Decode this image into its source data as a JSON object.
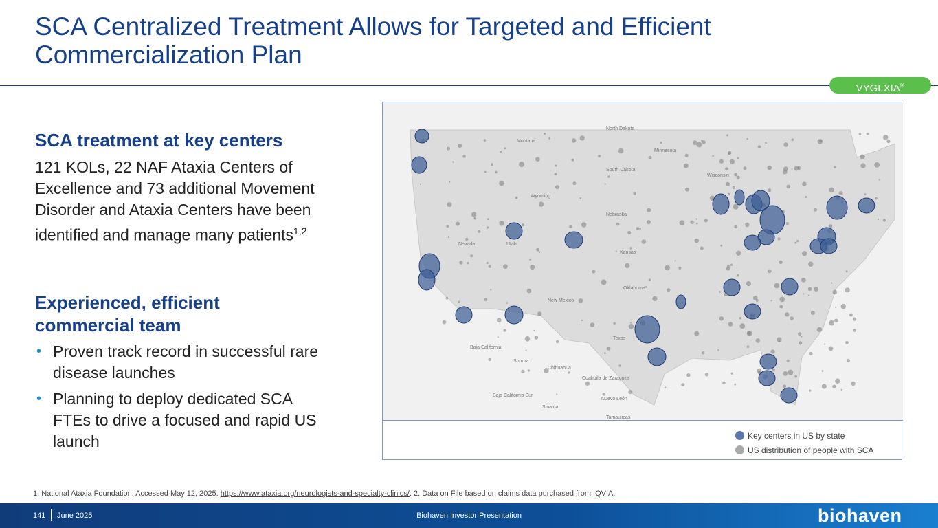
{
  "slide": {
    "title": "SCA Centralized Treatment Allows for Targeted and Efficient Commercialization Plan",
    "badge": "VYGLXIA",
    "badge_mark": "®"
  },
  "left": {
    "heading1": "SCA treatment at key centers",
    "body": "121 KOLs, 22 NAF Ataxia Centers of Excellence and 73 additional Movement Disorder and Ataxia Centers have been identified and manage many patients",
    "body_sup": "1,2",
    "heading2": "Experienced, efficient commercial team",
    "bullets": [
      "Proven track record in successful rare disease launches",
      "Planning to deploy dedicated SCA FTEs to drive a focused and rapid US launch"
    ]
  },
  "map": {
    "legend": [
      {
        "label": "Key centers in US by state",
        "color": "#5b76a8"
      },
      {
        "label": "US distribution of people with SCA",
        "color": "#a9a9a9"
      }
    ],
    "state_labels": [
      "North Dakota",
      "South Dakota",
      "Montana",
      "Wyoming",
      "Nebraska",
      "Nevada",
      "Utah",
      "Kansas",
      "New Mexico",
      "Texas",
      "Oklahoma",
      "Minnesota",
      "Wisconsin",
      "Baja California",
      "Sonora",
      "Chihuahua",
      "Coahuila de Zaragoza",
      "Nuevo León",
      "Baja California Sur",
      "Sinaloa",
      "Tamaulipas"
    ]
  },
  "footnote": {
    "prefix": "1. National Ataxia Foundation. Accessed May 12, 2025. ",
    "link": "https://www.ataxia.org/neurologists-and-specialty-clinics/",
    "suffix": ". 2. Data on File based on claims data purchased from IQVIA."
  },
  "footer": {
    "page": "141",
    "date": "June 2025",
    "center": "Biohaven Investor Presentation",
    "logo": "biohaven"
  },
  "colors": {
    "title_blue": "#17408b",
    "accent_green": "#5bbf4b",
    "bullet_blue": "#1e8fd1",
    "center_fill": "#3f5f96"
  }
}
